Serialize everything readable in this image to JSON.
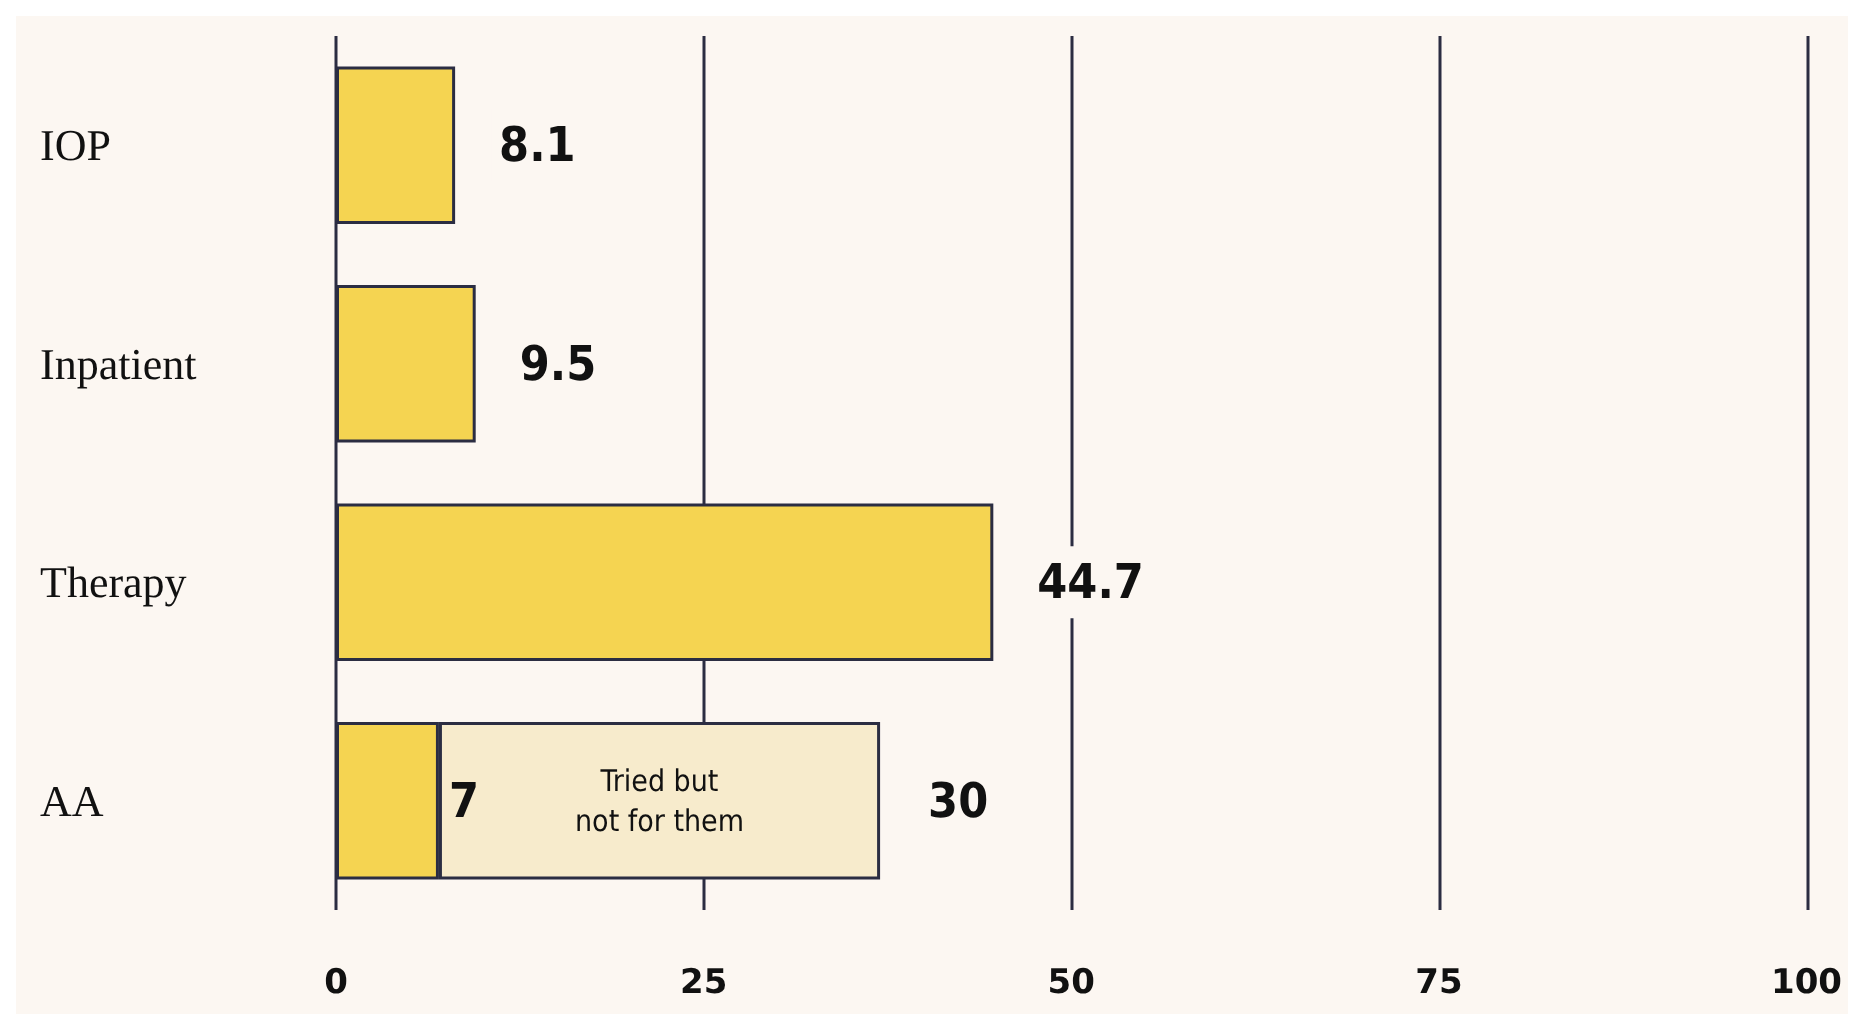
{
  "chart_data": {
    "type": "bar",
    "orientation": "horizontal",
    "stacked": true,
    "categories": [
      "IOP",
      "Inpatient",
      "Therapy",
      "AA"
    ],
    "series": [
      {
        "color": "#f5d451",
        "values": [
          8.1,
          9.5,
          44.7,
          7
        ]
      },
      {
        "name": "Tried but\nnot for them",
        "color": "#f7ebcc",
        "values": [
          null,
          null,
          null,
          30
        ]
      }
    ],
    "xlim": [
      0,
      100
    ],
    "xticks": [
      0,
      25,
      50,
      75,
      100
    ],
    "grid": "x",
    "data_labels": true,
    "legend": false
  }
}
